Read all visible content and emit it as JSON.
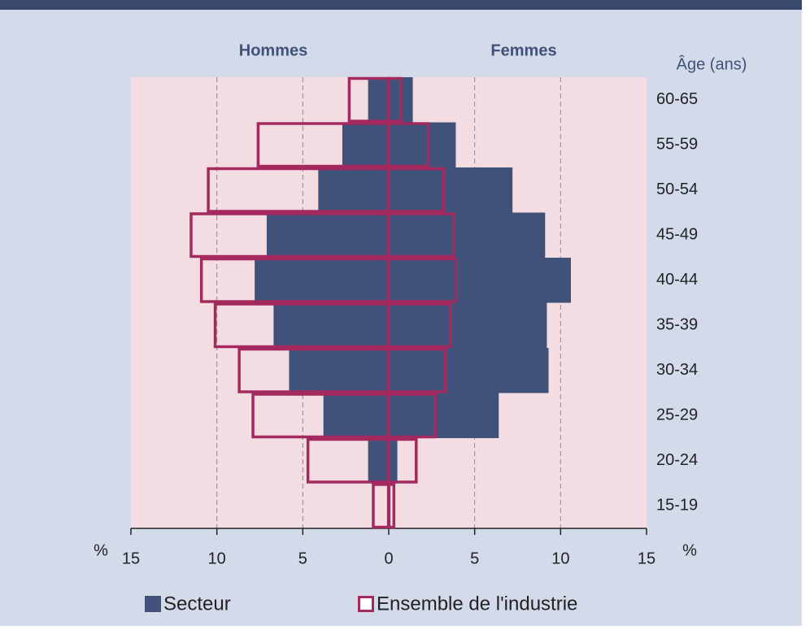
{
  "chart_data": {
    "type": "pyramid",
    "left_label": "Hommes",
    "right_label": "Femmes",
    "y_label": "Âge (ans)",
    "x_unit": "%",
    "categories": [
      "60-65",
      "55-59",
      "50-54",
      "45-49",
      "40-44",
      "35-39",
      "30-34",
      "25-29",
      "20-24",
      "15-19"
    ],
    "series": [
      {
        "name": "Secteur",
        "color": "#40527a",
        "style": "fill",
        "left": [
          1.2,
          2.7,
          4.1,
          7.1,
          7.8,
          6.7,
          5.8,
          3.8,
          1.2,
          0.1
        ],
        "right": [
          1.4,
          3.9,
          7.2,
          9.1,
          10.6,
          9.2,
          9.3,
          6.4,
          0.5,
          0.1
        ]
      },
      {
        "name": "Ensemble de l'industrie",
        "color": "#a3295e",
        "style": "outline",
        "left": [
          2.3,
          7.6,
          10.5,
          11.5,
          10.9,
          10.1,
          8.7,
          7.9,
          4.7,
          0.9
        ],
        "right": [
          0.7,
          2.3,
          3.2,
          3.8,
          3.9,
          3.6,
          3.3,
          2.7,
          1.6,
          0.3
        ]
      }
    ],
    "xlim": [
      0,
      15
    ],
    "xticks": [
      0,
      5,
      10,
      15
    ],
    "grid": true
  }
}
